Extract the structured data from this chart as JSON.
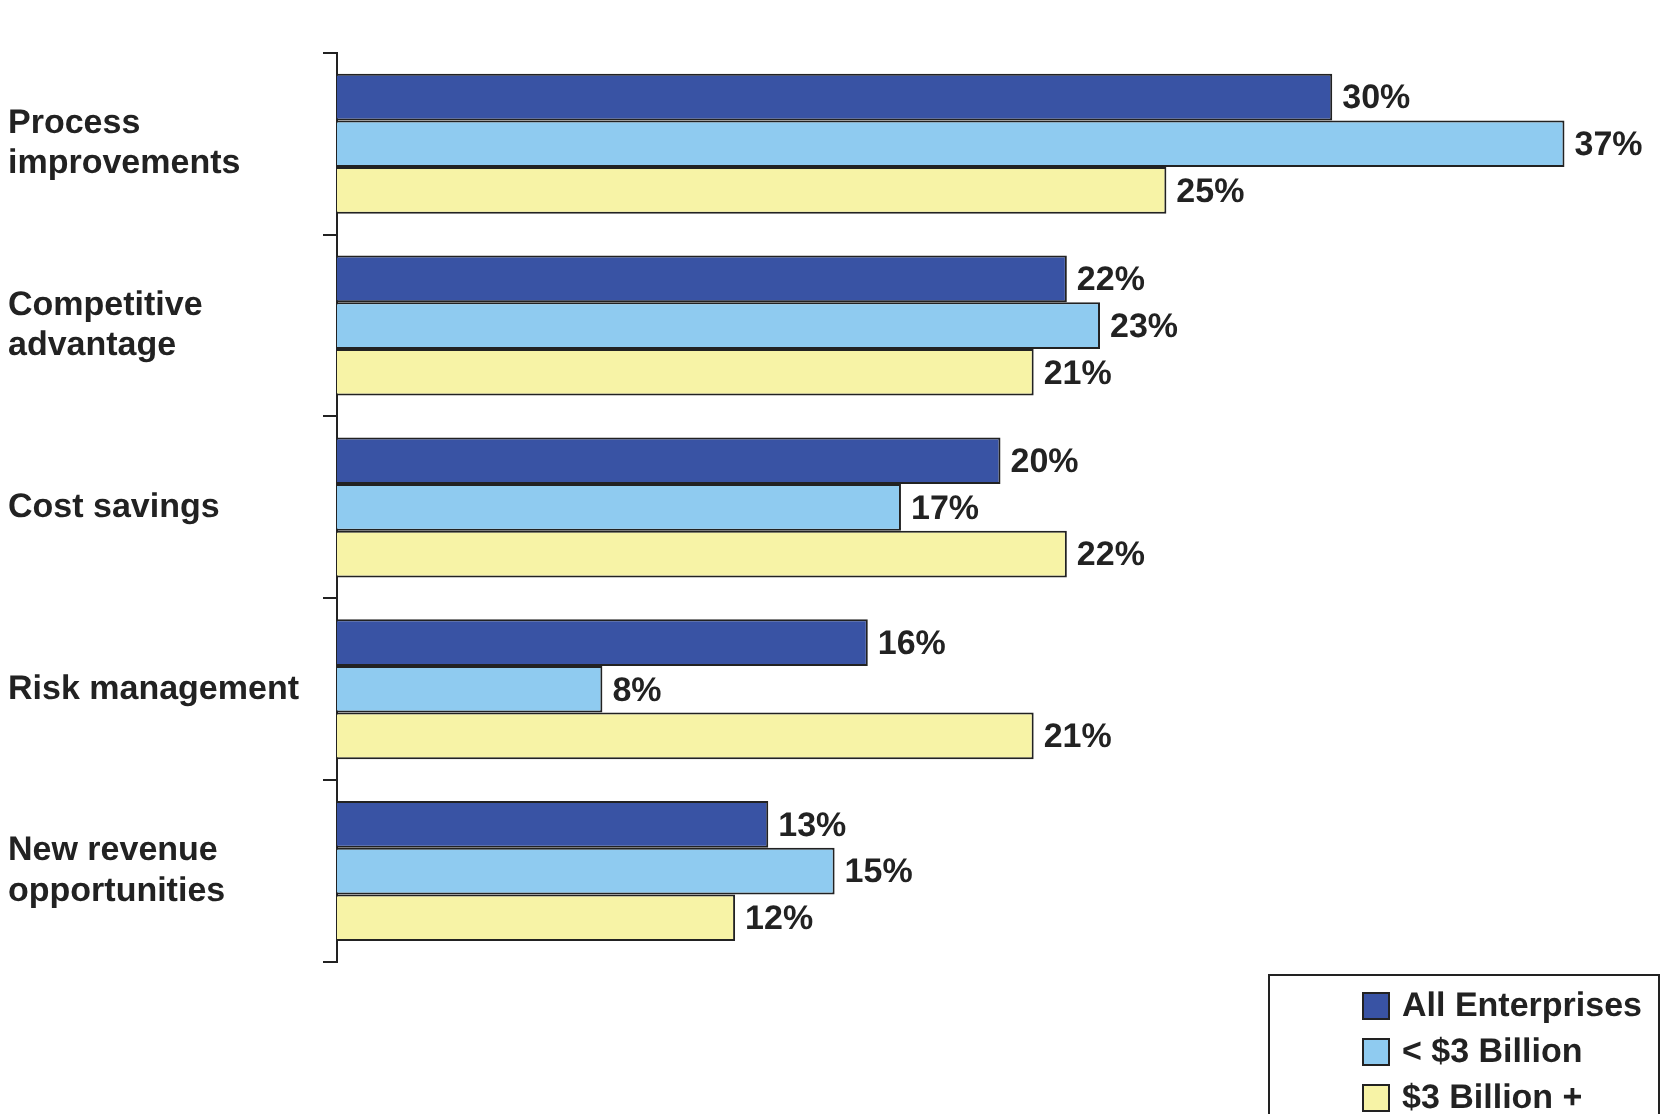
{
  "chart_data": {
    "type": "bar",
    "orientation": "horizontal",
    "categories": [
      "Process improvements",
      "Competitive advantage",
      "Cost savings",
      "Risk management",
      "New revenue opportunities"
    ],
    "series": [
      {
        "name": "All Enterprises",
        "color": "#3953a4",
        "values": [
          30,
          22,
          20,
          16,
          13
        ],
        "value_labels": [
          "30%",
          "22%",
          "20%",
          "16%",
          "13%"
        ]
      },
      {
        "name": "< $3 Billion",
        "color": "#8fcbf0",
        "values": [
          37,
          23,
          17,
          8,
          15
        ],
        "value_labels": [
          "37%",
          "23%",
          "17%",
          "8%",
          "15%"
        ]
      },
      {
        "name": "$3 Billion +",
        "color": "#f7f3a6",
        "values": [
          25,
          21,
          22,
          21,
          12
        ],
        "value_labels": [
          "25%",
          "21%",
          "22%",
          "21%",
          "12%"
        ]
      }
    ],
    "tick_labels": "y",
    "legend": "bottom right"
  }
}
